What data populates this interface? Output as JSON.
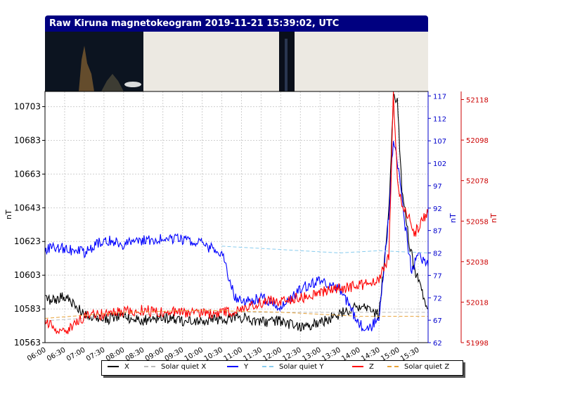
{
  "title": "Raw Kiruna magnetokeogram 2019-11-21 15:39:02, UTC",
  "chart_data": {
    "type": "line",
    "x_ticks": [
      "06:00",
      "06:30",
      "07:00",
      "07:30",
      "08:00",
      "08:30",
      "09:00",
      "09:30",
      "10:00",
      "10:30",
      "11:00",
      "11:30",
      "12:00",
      "12:30",
      "13:00",
      "13:30",
      "14:00",
      "14:30",
      "15:00",
      "15:30"
    ],
    "x_range": [
      "06:00",
      "15:45"
    ],
    "left_axis": {
      "label": "nT",
      "ticks": [
        10563,
        10583,
        10603,
        10623,
        10643,
        10663,
        10683,
        10703
      ],
      "range": [
        10563,
        10712
      ],
      "color": "#000000"
    },
    "right_axis_1": {
      "label": "nT",
      "ticks": [
        62,
        67,
        72,
        77,
        82,
        87,
        92,
        97,
        102,
        107,
        112,
        117
      ],
      "range": [
        62,
        118
      ],
      "color": "#0000cc"
    },
    "right_axis_2": {
      "label": "nT",
      "ticks": [
        51998,
        52018,
        52038,
        52058,
        52078,
        52098,
        52118
      ],
      "range": [
        51998,
        52122
      ],
      "color": "#cc0000"
    },
    "grid": true,
    "legend_position": "bottom",
    "series": [
      {
        "name": "X",
        "axis": "left",
        "color": "#000000",
        "style": "solid",
        "x": [
          "06:00",
          "06:30",
          "07:00",
          "07:30",
          "08:00",
          "08:30",
          "09:00",
          "09:30",
          "10:00",
          "10:30",
          "11:00",
          "11:30",
          "12:00",
          "12:30",
          "13:00",
          "13:30",
          "14:00",
          "14:30",
          "14:45",
          "14:52",
          "14:58",
          "15:05",
          "15:15",
          "15:25",
          "15:35",
          "15:45"
        ],
        "y": [
          10588,
          10590,
          10580,
          10577,
          10578,
          10576,
          10578,
          10576,
          10576,
          10577,
          10578,
          10575,
          10576,
          10572,
          10575,
          10580,
          10585,
          10580,
          10640,
          10710,
          10705,
          10655,
          10625,
          10605,
          10595,
          10583
        ]
      },
      {
        "name": "Solar quiet X",
        "axis": "left",
        "color": "#bbbbbb",
        "style": "dashed",
        "x": [
          "06:00",
          "08:00",
          "10:00",
          "12:00",
          "14:00",
          "15:45"
        ],
        "y": [
          10576,
          10579,
          10581,
          10581,
          10581,
          10581
        ]
      },
      {
        "name": "Y",
        "axis": "right_axis_1",
        "color": "#0000ff",
        "style": "solid",
        "x": [
          "06:00",
          "06:30",
          "07:00",
          "07:30",
          "08:00",
          "08:30",
          "09:00",
          "09:30",
          "10:00",
          "10:30",
          "10:50",
          "11:00",
          "11:30",
          "12:00",
          "12:30",
          "13:00",
          "13:30",
          "13:45",
          "14:00",
          "14:15",
          "14:30",
          "14:45",
          "14:52",
          "15:00",
          "15:10",
          "15:20",
          "15:30",
          "15:45"
        ],
        "y": [
          83,
          83,
          82,
          85,
          84,
          85,
          85,
          85,
          84,
          82,
          72,
          71,
          72,
          70,
          74,
          76,
          74,
          70,
          66,
          65,
          68,
          90,
          108,
          100,
          88,
          78,
          82,
          79
        ]
      },
      {
        "name": "Solar quiet Y",
        "axis": "right_axis_1",
        "color": "#88ccee",
        "style": "dashed",
        "x": [
          "10:30",
          "11:30",
          "12:30",
          "13:30",
          "14:30",
          "15:45"
        ],
        "y": [
          83.5,
          83,
          82.5,
          82,
          82.5,
          82
        ]
      },
      {
        "name": "Z",
        "axis": "right_axis_2",
        "color": "#ff0000",
        "style": "solid",
        "x": [
          "06:00",
          "06:30",
          "07:00",
          "07:30",
          "08:00",
          "08:30",
          "09:00",
          "09:30",
          "10:00",
          "10:30",
          "11:00",
          "11:30",
          "12:00",
          "12:30",
          "13:00",
          "13:30",
          "14:00",
          "14:30",
          "14:45",
          "14:52",
          "14:58",
          "15:05",
          "15:15",
          "15:25",
          "15:35",
          "15:45"
        ],
        "y": [
          52008,
          52003,
          52011,
          52012,
          52013,
          52014,
          52013,
          52013,
          52012,
          52013,
          52014,
          52018,
          52019,
          52020,
          52023,
          52025,
          52026,
          52030,
          52040,
          52120,
          52080,
          52065,
          52060,
          52052,
          52058,
          52062
        ]
      },
      {
        "name": "Solar quiet Z",
        "axis": "right_axis_2",
        "color": "#e8a33a",
        "style": "dashed",
        "x": [
          "06:00",
          "08:00",
          "10:00",
          "12:00",
          "14:00",
          "15:45"
        ],
        "y": [
          52010,
          52013,
          52014,
          52013,
          52011,
          52011
        ]
      }
    ]
  }
}
